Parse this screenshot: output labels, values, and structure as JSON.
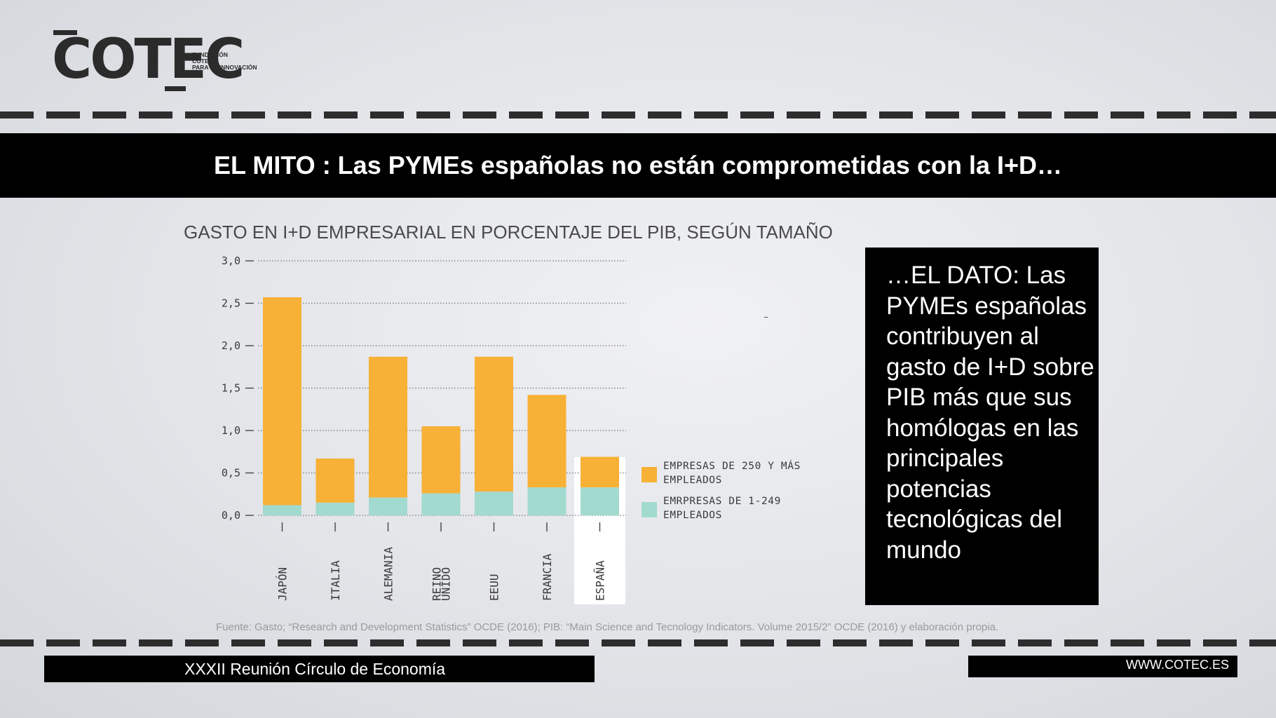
{
  "logo": {
    "word": "COTEC",
    "line1": "FUNDACIÓN",
    "line2": "COTEC",
    "line3": "PARA LA INNOVACIÓN"
  },
  "header": {
    "title": "EL MITO : Las PYMEs españolas no están comprometidas con la I+D…"
  },
  "side_note": "…EL DATO: Las PYMEs españolas contribuyen  al gasto de I+D sobre PIB más que  sus homólogas en las principales potencias tecnológicas del mundo",
  "source": "Fuente: Gasto; “Research and Development Statistics” OCDE (2016); PIB: “Main Science and Tecnology Indicators. Volume 2015/2” OCDE (2016) y elaboración propia.",
  "footer": {
    "left": "XXXII Reunión Círculo de Economía",
    "right": "WWW.COTEC.ES"
  },
  "colors": {
    "large_firms": "#f7b137",
    "small_firms": "#a3dad0",
    "text_dark": "#3a3a3a"
  },
  "chart_data": {
    "type": "bar",
    "stacked": true,
    "title": "GASTO EN I+D EMPRESARIAL EN PORCENTAJE DEL PIB, SEGÚN TAMAÑO",
    "categories": [
      "JAPÓN",
      "ITALIA",
      "ALEMANIA",
      "REINO UNIDO",
      "EEUU",
      "FRANCIA",
      "ESPAÑA"
    ],
    "highlight_category": "ESPAÑA",
    "series": [
      {
        "name": "EMRPRESAS DE 1-249 EMPLEADOS",
        "values": [
          0.12,
          0.15,
          0.21,
          0.26,
          0.28,
          0.33,
          0.33
        ]
      },
      {
        "name": "EMPRESAS DE 250 Y MÁS EMPLEADOS",
        "values": [
          2.45,
          0.52,
          1.66,
          0.79,
          1.59,
          1.09,
          0.36
        ]
      }
    ],
    "yticks": [
      "0,0",
      "0,5",
      "1,0",
      "1,5",
      "2,0",
      "2,5",
      "3,0"
    ],
    "ylim": [
      0,
      3
    ],
    "grid": true,
    "legend_position": "right"
  }
}
